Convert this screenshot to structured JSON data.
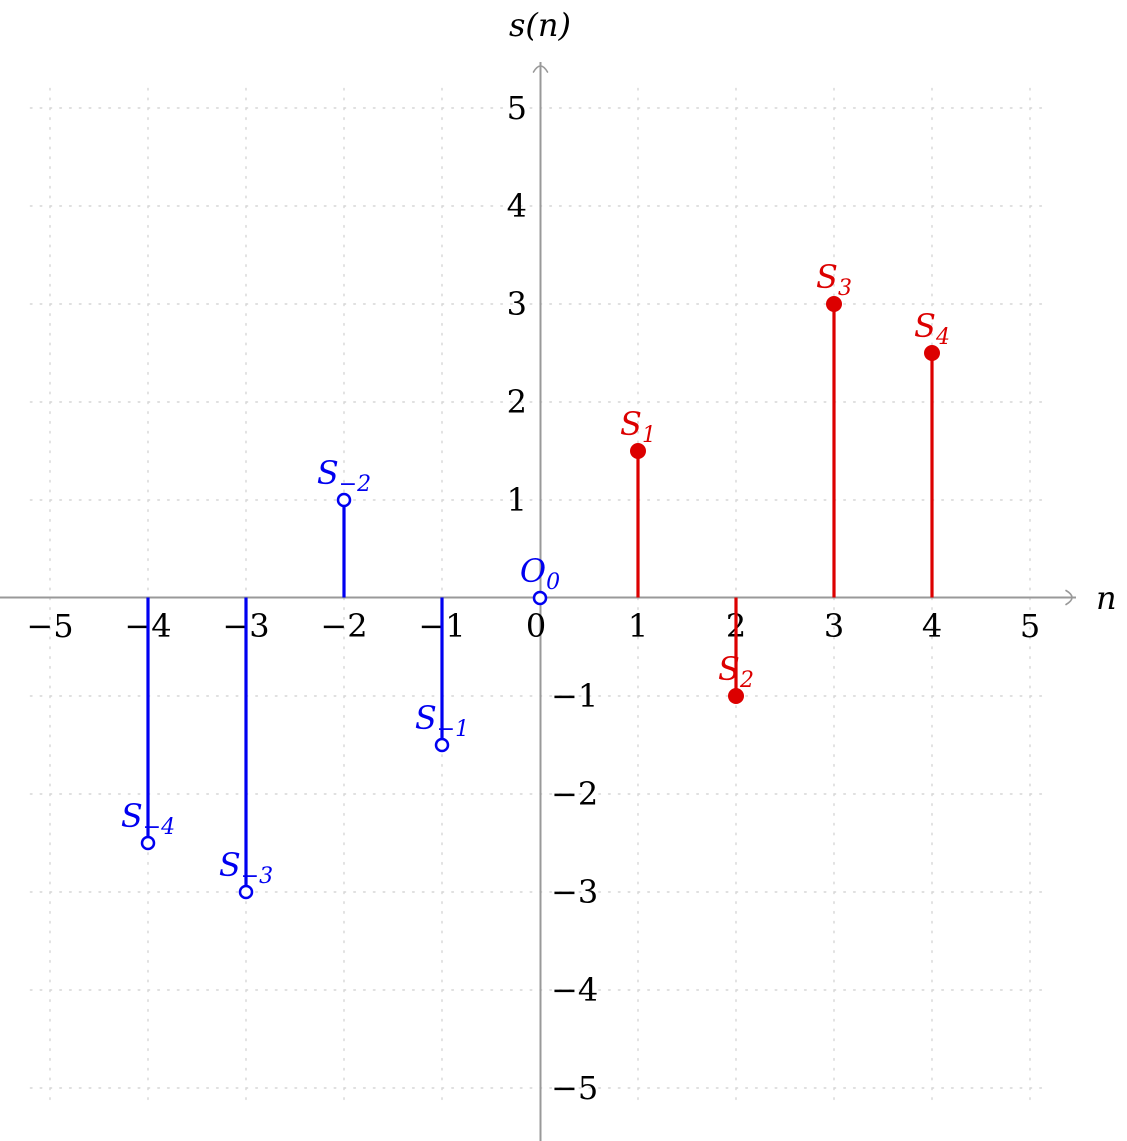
{
  "chart_data": {
    "type": "stem",
    "xlabel": "n",
    "ylabel": "s(n)",
    "xlim": [
      -5.5,
      5.9
    ],
    "ylim": [
      -5.6,
      5.5
    ],
    "grid": "dotted",
    "grid_extent": 5.2,
    "x_ticks": [
      {
        "v": -5,
        "label": "−5"
      },
      {
        "v": -4,
        "label": "−4"
      },
      {
        "v": -3,
        "label": "−3"
      },
      {
        "v": -2,
        "label": "−2"
      },
      {
        "v": -1,
        "label": "−1"
      },
      {
        "v": 0,
        "label": "0"
      },
      {
        "v": 1,
        "label": "1"
      },
      {
        "v": 2,
        "label": "2"
      },
      {
        "v": 3,
        "label": "3"
      },
      {
        "v": 4,
        "label": "4"
      },
      {
        "v": 5,
        "label": "5"
      }
    ],
    "y_ticks": [
      {
        "v": 5,
        "label": "5"
      },
      {
        "v": 4,
        "label": "4"
      },
      {
        "v": 3,
        "label": "3"
      },
      {
        "v": 2,
        "label": "2"
      },
      {
        "v": 1,
        "label": "1"
      },
      {
        "v": -1,
        "label": "−1"
      },
      {
        "v": -2,
        "label": "−2"
      },
      {
        "v": -3,
        "label": "−3"
      },
      {
        "v": -4,
        "label": "−4"
      },
      {
        "v": -5,
        "label": "−5"
      }
    ],
    "colors": {
      "blue": "#0000f0",
      "red": "#dc0000",
      "axis": "#999999",
      "grid": "#d6d6d6",
      "tick_text": "#000000"
    },
    "x": [
      -4,
      -3,
      -2,
      -1,
      0,
      1,
      2,
      3,
      4
    ],
    "values": [
      -2.5,
      -3,
      1,
      -1.5,
      0,
      1.5,
      -1,
      3,
      2.5
    ],
    "points": [
      {
        "n": -4,
        "value": -2.5,
        "letter": "S",
        "subscript": "−4",
        "marker": "open",
        "color": "blue"
      },
      {
        "n": -3,
        "value": -3,
        "letter": "S",
        "subscript": "−3",
        "marker": "open",
        "color": "blue"
      },
      {
        "n": -2,
        "value": 1,
        "letter": "S",
        "subscript": "−2",
        "marker": "open",
        "color": "blue"
      },
      {
        "n": -1,
        "value": -1.5,
        "letter": "S",
        "subscript": "−1",
        "marker": "open",
        "color": "blue"
      },
      {
        "n": 0,
        "value": 0,
        "letter": "O",
        "subscript": "0",
        "marker": "open",
        "color": "blue"
      },
      {
        "n": 1,
        "value": 1.5,
        "letter": "S",
        "subscript": "1",
        "marker": "filled",
        "color": "red"
      },
      {
        "n": 2,
        "value": -1,
        "letter": "S",
        "subscript": "2",
        "marker": "filled",
        "color": "red"
      },
      {
        "n": 3,
        "value": 3,
        "letter": "S",
        "subscript": "3",
        "marker": "filled",
        "color": "red"
      },
      {
        "n": 4,
        "value": 2.5,
        "letter": "S",
        "subscript": "4",
        "marker": "filled",
        "color": "red"
      }
    ],
    "legend": null,
    "title": null
  }
}
